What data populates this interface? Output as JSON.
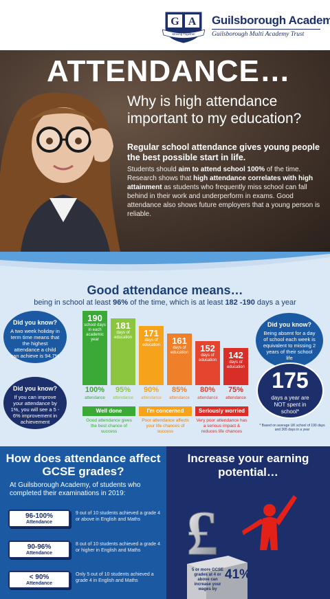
{
  "header": {
    "crest_letters": [
      "G",
      "A"
    ],
    "crest_motto": "Striving Together",
    "school_name": "Guilsborough Academy",
    "trust_name": "Guilsborough Multi Academy Trust"
  },
  "hero": {
    "title": "ATTENDANCE…",
    "question": "Why is high attendance important to my education?",
    "lead": "Regular school attendance gives young people the best possible start in life.",
    "body_parts": [
      "Students should ",
      "aim to attend school 100%",
      " of the time. Research shows that ",
      "high attendance correlates with high attainment",
      " as students who frequently miss school can fall behind in their work and underperform in exams. Good attendance also shows future employers that a young person is reliable."
    ]
  },
  "good_attendance": {
    "title": "Good attendance means…",
    "subtitle_parts": [
      "being in school at least ",
      "96%",
      " of the time, which is at least ",
      "182 -190",
      " days a year"
    ],
    "did_you_know_1": {
      "heading": "Did you know?",
      "text": "A two week holiday in term time means that the highest attendance a child can achieve is 94.7%"
    },
    "did_you_know_2": {
      "heading": "Did you know?",
      "text": "If you can improve your attendance by 1%, you will see a 5 - 6% improvement in achievement"
    },
    "did_you_know_3": {
      "heading": "Did you know?",
      "text": "Being absent for a day of school each week is equivalent to missing 2 years of their school life"
    },
    "big_circle": {
      "number": "175",
      "caption": "days a year are NOT spent in school*"
    },
    "big_circle_note": "* Based on average UK school of 190 days and 365 days in a year",
    "bars": [
      {
        "days": "190",
        "days_label": "school days in each academic year",
        "percent": "100%",
        "fill": 1.0,
        "color": "#3aa935"
      },
      {
        "days": "181",
        "days_label": "days of education",
        "percent": "95%",
        "fill": 0.9,
        "color": "#8cc63f"
      },
      {
        "days": "171",
        "days_label": "days of education",
        "percent": "90%",
        "fill": 0.8,
        "color": "#f7a21b"
      },
      {
        "days": "161",
        "days_label": "days of education",
        "percent": "85%",
        "fill": 0.69,
        "color": "#f07f2a"
      },
      {
        "days": "152",
        "days_label": "days of education",
        "percent": "80%",
        "fill": 0.59,
        "color": "#e5452f"
      },
      {
        "days": "142",
        "days_label": "days of education",
        "percent": "75%",
        "fill": 0.5,
        "color": "#d92d27"
      }
    ],
    "percent_label": "attendance",
    "bands": [
      {
        "label": "Well done",
        "text": "Good attendance gives the best chance of success",
        "color": "#3aa935",
        "text_color": "#3aa935"
      },
      {
        "label": "I'm concerned",
        "text": "Poor attendance affects your life chances of success",
        "color": "#f7a21b",
        "text_color": "#e07f10"
      },
      {
        "label": "Seriously worried",
        "text": "Very poor attendance has a serious impact & reduces life chances",
        "color": "#d92d27",
        "text_color": "#d92d27"
      }
    ]
  },
  "gcse": {
    "title": "How does attendance affect GCSE grades?",
    "intro": "At Guilsborough Academy, of students who completed their examinations in 2019:",
    "rows": [
      {
        "range": "96-100%",
        "label": "Attendance",
        "text": "9 out of 10 students achieved a grade 4 or above in English and Maths"
      },
      {
        "range": "90-96%",
        "label": "Attendance",
        "text": "8 out of 10 students achieved a grade 4 or higher in English and Maths"
      },
      {
        "range": "< 90%",
        "label": "Attendance",
        "text": "Only 5 out of 10 students achieved a grade 4 in English and Maths"
      }
    ]
  },
  "earning": {
    "title": "Increase your earning potential…",
    "box_text": "5 or more GCSE grades at 4 or above can increase your wages by",
    "percent": "41%"
  }
}
